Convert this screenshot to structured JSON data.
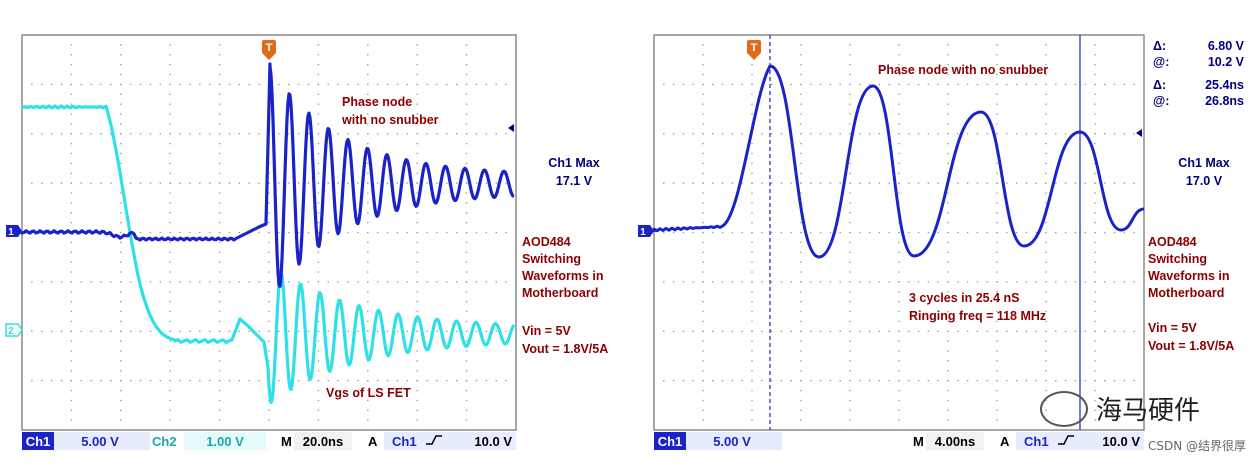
{
  "chart_data": [
    {
      "type": "line",
      "panel": "left",
      "trigger_marker": "T",
      "series": [
        {
          "name": "Ch1",
          "color": "#1a23c8",
          "description": "Phase node: flat ~0V, then step to 17.1V with decaying ringing",
          "t_ns": [
            -100,
            -5,
            0,
            100
          ],
          "v_peak": 17.1
        },
        {
          "name": "Ch2",
          "color": "#2fe0e8",
          "description": "Vgs of LS FET: high plateau then falls, ringing after switch"
        }
      ],
      "annotations": [
        "Phase node",
        "with no snubber",
        "Vgs of LS FET"
      ],
      "measurement": {
        "label": "Ch1 Max",
        "value": "17.1 V"
      },
      "info": [
        "AOD484",
        "Switching",
        "Waveforms in",
        "Motherboard",
        "Vin = 5V",
        "Vout = 1.8V/5A"
      ],
      "status": {
        "ch1": "Ch1",
        "ch1_scale": "5.00 V",
        "ch2": "Ch2",
        "ch2_scale": "1.00 V",
        "m": "M",
        "time": "20.0ns",
        "a": "A",
        "trig_ch": "Ch1",
        "trig_level": "10.0 V"
      },
      "channel_markers": [
        "1",
        "2"
      ]
    },
    {
      "type": "line",
      "panel": "right",
      "trigger_marker": "T",
      "series": [
        {
          "name": "Ch1",
          "color": "#1a23c8",
          "description": "Phase node ringing, zoomed; ~3 cycles in 25.4 nS"
        }
      ],
      "annotations": [
        "Phase node with no snubber",
        "3 cycles in  25.4 nS",
        "Ringing freq = 118 MHz"
      ],
      "cursors": [
        {
          "sym": "Δ:",
          "val": "6.80 V"
        },
        {
          "sym": "@:",
          "val": "10.2 V"
        },
        {
          "sym": "Δ:",
          "val": "25.4ns"
        },
        {
          "sym": "@:",
          "val": "26.8ns"
        }
      ],
      "measurement": {
        "label": "Ch1 Max",
        "value": "17.0 V"
      },
      "info": [
        "AOD484",
        "Switching",
        "Waveforms in",
        "Motherboard",
        "Vin = 5V",
        "Vout = 1.8V/5A"
      ],
      "status": {
        "ch1": "Ch1",
        "ch1_scale": "5.00 V",
        "m": "M",
        "time": "4.00ns",
        "a": "A",
        "trig_ch": "Ch1",
        "trig_level": "10.0 V"
      },
      "channel_markers": [
        "1"
      ]
    }
  ],
  "watermark": {
    "brand": "海马硬件",
    "source": "CSDN @结界很厚"
  }
}
